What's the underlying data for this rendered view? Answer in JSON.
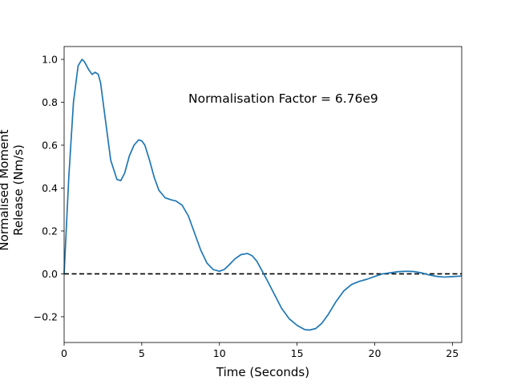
{
  "chart_data": {
    "type": "line",
    "title": "",
    "xlabel": "Time (Seconds)",
    "ylabel_lines": [
      "Normalised Moment",
      "Release (Nm/s)"
    ],
    "annotation": "Normalisation Factor = 6.76e9",
    "xlim": [
      0,
      25.6
    ],
    "ylim": [
      -0.32,
      1.06
    ],
    "xticks": [
      0,
      5,
      10,
      15,
      20,
      25
    ],
    "xtick_labels": [
      "0",
      "5",
      "10",
      "15",
      "20",
      "25"
    ],
    "yticks": [
      -0.2,
      0.0,
      0.2,
      0.4,
      0.6,
      0.8,
      1.0
    ],
    "ytick_labels": [
      "−0.2",
      "0.0",
      "0.2",
      "0.4",
      "0.6",
      "0.8",
      "1.0"
    ],
    "grid": false,
    "legend": "none",
    "series": [
      {
        "color": "#1f77b4",
        "x": [
          0.0,
          0.3,
          0.6,
          0.9,
          1.15,
          1.3,
          1.6,
          1.8,
          2.0,
          2.2,
          2.35,
          2.6,
          3.0,
          3.4,
          3.65,
          3.9,
          4.2,
          4.5,
          4.8,
          5.0,
          5.2,
          5.5,
          5.8,
          6.1,
          6.5,
          6.9,
          7.2,
          7.6,
          8.0,
          8.4,
          8.8,
          9.2,
          9.6,
          10.0,
          10.3,
          10.6,
          11.0,
          11.4,
          11.8,
          12.1,
          12.4,
          12.7,
          13.0,
          13.5,
          14.0,
          14.5,
          15.0,
          15.5,
          15.8,
          16.2,
          16.6,
          17.0,
          17.5,
          18.0,
          18.5,
          19.0,
          19.5,
          20.0,
          20.5,
          21.0,
          21.5,
          22.0,
          22.5,
          23.0,
          23.5,
          24.0,
          24.5,
          25.0,
          25.6
        ],
        "y": [
          0.0,
          0.45,
          0.8,
          0.97,
          1.0,
          0.99,
          0.95,
          0.93,
          0.94,
          0.93,
          0.89,
          0.75,
          0.53,
          0.44,
          0.435,
          0.47,
          0.55,
          0.6,
          0.625,
          0.62,
          0.6,
          0.53,
          0.45,
          0.39,
          0.355,
          0.345,
          0.34,
          0.32,
          0.27,
          0.19,
          0.11,
          0.05,
          0.02,
          0.012,
          0.02,
          0.04,
          0.07,
          0.09,
          0.095,
          0.085,
          0.06,
          0.02,
          -0.02,
          -0.09,
          -0.16,
          -0.21,
          -0.24,
          -0.26,
          -0.262,
          -0.255,
          -0.23,
          -0.19,
          -0.13,
          -0.08,
          -0.05,
          -0.035,
          -0.025,
          -0.012,
          0.0,
          0.005,
          0.01,
          0.012,
          0.011,
          0.005,
          -0.005,
          -0.012,
          -0.015,
          -0.013,
          -0.01
        ]
      }
    ],
    "reference_line": {
      "y": 0.0,
      "style": "dashed",
      "color": "#000000"
    }
  }
}
